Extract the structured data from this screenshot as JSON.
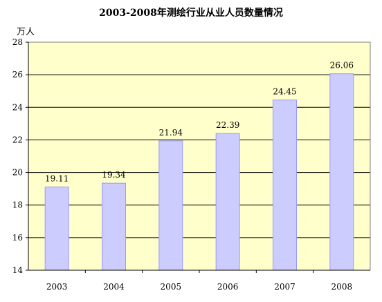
{
  "chart_data": {
    "type": "bar",
    "title": "2003-2008年测绘行业从业人员数量情况",
    "ylabel": "万人",
    "xlabel": "",
    "categories": [
      "2003",
      "2004",
      "2005",
      "2006",
      "2007",
      "2008"
    ],
    "values": [
      19.11,
      19.34,
      21.94,
      22.39,
      24.45,
      26.06
    ],
    "data_labels": [
      "19.11",
      "19.34",
      "21.94",
      "22.39",
      "24.45",
      "26.06"
    ],
    "ylim": [
      14,
      28
    ],
    "yticks": [
      14,
      16,
      18,
      20,
      22,
      24,
      26,
      28
    ],
    "grid": true,
    "legend": "none",
    "colors": {
      "plot_background": "#ffffcc",
      "bar_fill": "#ccccff",
      "bar_stroke": "#9999ff",
      "grid": "#000000"
    }
  }
}
